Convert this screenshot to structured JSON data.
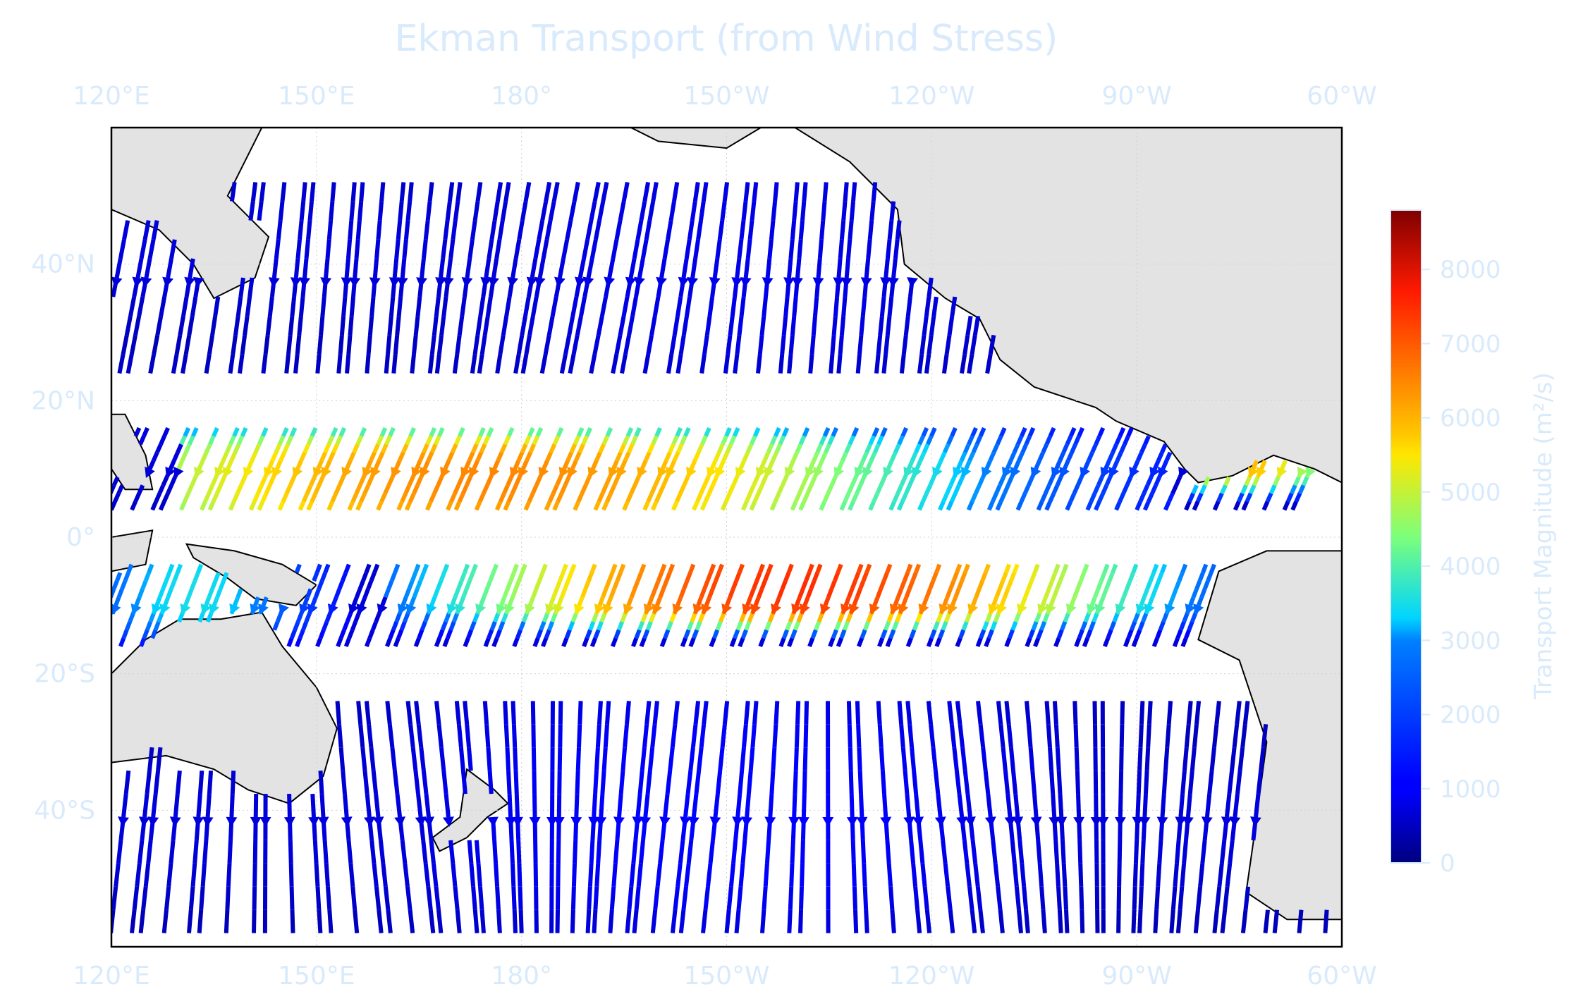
{
  "chart_data": {
    "type": "streamplot",
    "title": "Ekman Transport (from Wind Stress)",
    "projection": "PlateCarree (central longitude 180°)",
    "xlim": [
      120,
      300
    ],
    "ylim": [
      -60,
      60
    ],
    "x_ticks": [
      {
        "lon": 120,
        "label": "120°E"
      },
      {
        "lon": 150,
        "label": "150°E"
      },
      {
        "lon": 180,
        "label": "180°"
      },
      {
        "lon": 210,
        "label": "150°W"
      },
      {
        "lon": 240,
        "label": "120°W"
      },
      {
        "lon": 270,
        "label": "90°W"
      },
      {
        "lon": 300,
        "label": "60°W"
      }
    ],
    "y_ticks": [
      {
        "lat": 40,
        "label": "40°N"
      },
      {
        "lat": 20,
        "label": "20°N"
      },
      {
        "lat": 0,
        "label": "0°"
      },
      {
        "lat": -20,
        "label": "20°S"
      },
      {
        "lat": -40,
        "label": "40°S"
      }
    ],
    "label_color": "#d8eafb",
    "land_color": "#e3e3e3",
    "colorbar": {
      "label": "Transport Magnitude (m²/s)",
      "colormap": "jet",
      "range": [
        0,
        8800
      ],
      "ticks": [
        0,
        1000,
        2000,
        3000,
        4000,
        5000,
        6000,
        7000,
        8000
      ]
    },
    "gridlines": true,
    "grid_style": "dotted, light",
    "transport_bands": [
      {
        "region": "north of equator",
        "lat_range": [
          2,
          15
        ],
        "lon_range": [
          135,
          270
        ],
        "peak_value": 6500,
        "peak_lon": 175,
        "direction": "westward-northward"
      },
      {
        "region": "south of equator",
        "lat_range": [
          -12,
          -2
        ],
        "lon_range": [
          165,
          285
        ],
        "peak_value": 7500,
        "peak_lon": 220,
        "direction": "westward-southward"
      },
      {
        "region": "Caribbean / Central America",
        "lat_range": [
          8,
          17
        ],
        "lon_range": [
          282,
          300
        ],
        "peak_value": 6000,
        "peak_lon": 285,
        "direction": "westward"
      },
      {
        "region": "western tropical South Pacific",
        "lat_range": [
          -14,
          -2
        ],
        "lon_range": [
          120,
          150
        ],
        "peak_value": 3500,
        "peak_lon": 132,
        "direction": "westward"
      },
      {
        "region": "mid-latitudes",
        "lat_range": [
          20,
          60
        ],
        "lon_range": [
          120,
          300
        ],
        "peak_value": 800,
        "direction": "southward"
      },
      {
        "region": "southern mid-latitudes",
        "lat_range": [
          -60,
          -20
        ],
        "lon_range": [
          120,
          300
        ],
        "peak_value": 1000,
        "direction": "northward"
      }
    ]
  }
}
